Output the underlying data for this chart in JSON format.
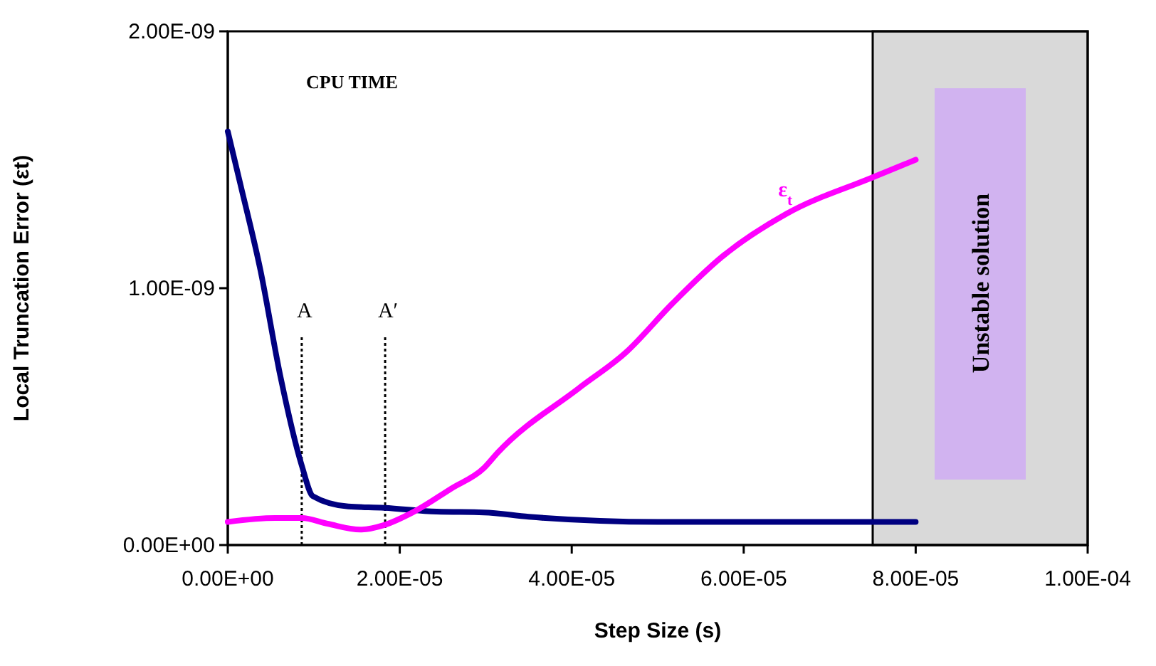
{
  "chart_data": {
    "type": "line",
    "xlabel": "Step Size (s)",
    "ylabel": "Local Truncation Error (εt)",
    "xlim": [
      0,
      0.0001
    ],
    "ylim": [
      0,
      2e-09
    ],
    "xticks": [
      {
        "value": 0,
        "label": "0.00E+00"
      },
      {
        "value": 2e-05,
        "label": "2.00E-05"
      },
      {
        "value": 4e-05,
        "label": "4.00E-05"
      },
      {
        "value": 6e-05,
        "label": "6.00E-05"
      },
      {
        "value": 8e-05,
        "label": "8.00E-05"
      },
      {
        "value": 0.0001,
        "label": "1.00E-04"
      }
    ],
    "yticks": [
      {
        "value": 0,
        "label": "0.00E+00"
      },
      {
        "value": 1e-09,
        "label": "1.00E-09"
      },
      {
        "value": 2e-09,
        "label": "2.00E-09"
      }
    ],
    "grid": false,
    "legend": false,
    "marker": "none",
    "line_style": "solid",
    "series": [
      {
        "color": "#000080",
        "x": [
          0,
          1.5e-06,
          3.8e-06,
          6.1e-06,
          8.6e-06,
          9.9e-06,
          1.4e-05,
          1.82e-05,
          2.43e-05,
          2.98e-05,
          3.5e-05,
          5e-05,
          8e-05
        ],
        "values": [
          1.61e-09,
          1.4e-09,
          1.07e-09,
          6.6e-10,
          3.1e-10,
          1.9e-10,
          1.5e-10,
          1.45e-10,
          1.3e-10,
          1.27e-10,
          1.1e-10,
          9e-11,
          9e-11
        ]
      },
      {
        "name": "ε$_{t}$",
        "color": "#ff00ff",
        "x": [
          0,
          5.5e-06,
          8.6e-06,
          1.16e-05,
          1.54e-05,
          1.82e-05,
          2.15e-05,
          2.6e-05,
          2.98e-05,
          3.14e-05,
          4.08e-05,
          4.63e-05,
          5.17e-05,
          5.74e-05,
          6.5e-05,
          7.49e-05,
          8e-05
        ],
        "values": [
          9e-11,
          1.05e-10,
          1.05e-10,
          8.3e-11,
          6e-11,
          7.8e-11,
          1.27e-10,
          2.2e-10,
          3e-10,
          3.6e-10,
          6.1e-10,
          7.5e-10,
          9.4e-10,
          1.12e-09,
          1.29e-09,
          1.43e-09,
          1.5e-09
        ]
      }
    ],
    "ref_lines": [
      {
        "axis": "x",
        "value": 8.6e-06,
        "label": "A",
        "line_style": "dotted",
        "color": "#000000"
      },
      {
        "axis": "x",
        "value": 1.83e-05,
        "label": "A′",
        "line_style": "dotted",
        "color": "#000000"
      }
    ],
    "bands": [
      {
        "axis": "x",
        "from": 7.5e-05,
        "to": 0.0001,
        "label": "Unstable solution",
        "color": "#d9d9d9"
      }
    ],
    "annotations": [
      "CPU TIME"
    ]
  }
}
